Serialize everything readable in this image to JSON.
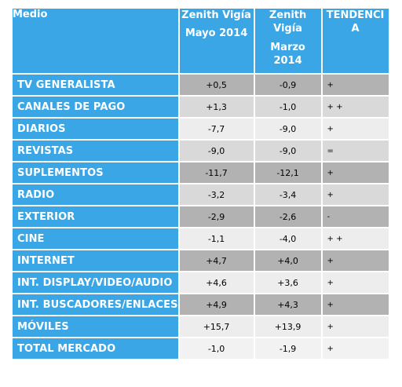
{
  "header": {
    "medio": "Medio",
    "col1_line1": "Zenith Vigía",
    "col1_line2": "Mayo 2014",
    "col2_line1": "Zenith",
    "col2_line2": "Vigía",
    "col2_line3": "Marzo",
    "col2_line4": "2014",
    "col3_line1": "TENDENCI",
    "col3_line2": "A"
  },
  "chart_data": {
    "type": "table",
    "columns": [
      "Medio",
      "Zenith Vigía Mayo 2014",
      "Zenith Vigía Marzo 2014",
      "TENDENCIA"
    ],
    "rows": [
      {
        "medio": "TV GENERALISTA",
        "mayo": "+0,5",
        "marzo": "-0,9",
        "tendencia": "+",
        "shade": "#b2b2b2"
      },
      {
        "medio": "CANALES DE PAGO",
        "mayo": "+1,3",
        "marzo": "-1,0",
        "tendencia": "+ +",
        "shade": "#d9d9d9"
      },
      {
        "medio": "DIARIOS",
        "mayo": "-7,7",
        "marzo": "-9,0",
        "tendencia": "+",
        "shade": "#ededed"
      },
      {
        "medio": "REVISTAS",
        "mayo": "-9,0",
        "marzo": "-9,0",
        "tendencia": "=",
        "shade": "#d9d9d9"
      },
      {
        "medio": "SUPLEMENTOS",
        "mayo": "-11,7",
        "marzo": "-12,1",
        "tendencia": "+",
        "shade": "#b2b2b2"
      },
      {
        "medio": "RADIO",
        "mayo": "-3,2",
        "marzo": "-3,4",
        "tendencia": "+",
        "shade": "#d9d9d9"
      },
      {
        "medio": "EXTERIOR",
        "mayo": "-2,9",
        "marzo": "-2,6",
        "tendencia": "-",
        "shade": "#b2b2b2"
      },
      {
        "medio": "CINE",
        "mayo": "-1,1",
        "marzo": "-4,0",
        "tendencia": "+ +",
        "shade": "#ededed"
      },
      {
        "medio": "INTERNET",
        "mayo": "+4,7",
        "marzo": "+4,0",
        "tendencia": "+",
        "shade": "#b2b2b2"
      },
      {
        "medio": "INT. DISPLAY/VIDEO/AUDIO",
        "mayo": "+4,6",
        "marzo": "+3,6",
        "tendencia": "+",
        "shade": "#ededed"
      },
      {
        "medio": "INT. BUSCADORES/ENLACES",
        "mayo": "+4,9",
        "marzo": "+4,3",
        "tendencia": "+",
        "shade": "#b2b2b2"
      },
      {
        "medio": "MÓVILES",
        "mayo": "+15,7",
        "marzo": "+13,9",
        "tendencia": "+",
        "shade": "#ededed"
      },
      {
        "medio": "TOTAL MERCADO",
        "mayo": "-1,0",
        "marzo": "-1,9",
        "tendencia": "+",
        "shade": "#f2f2f2"
      }
    ]
  },
  "colors": {
    "header_blue": "#3aa6e6",
    "text_white": "#ffffff"
  }
}
